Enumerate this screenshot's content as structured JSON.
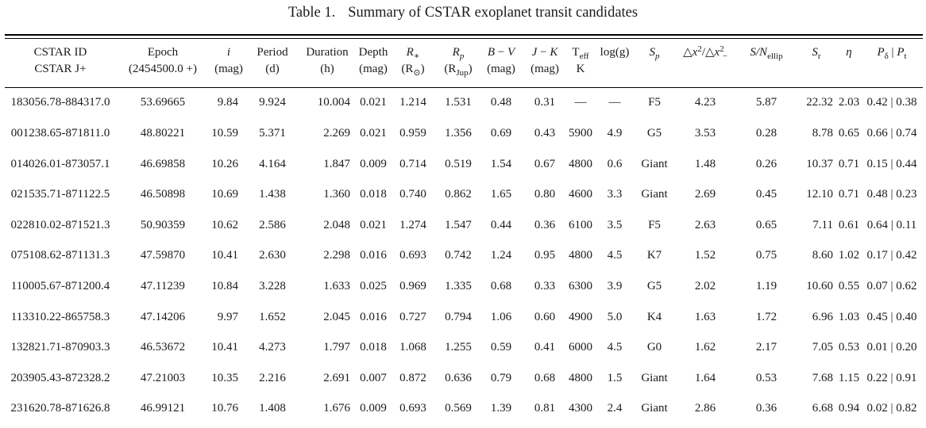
{
  "title": {
    "label": "Table 1.",
    "caption": "Summary of CSTAR exoplanet transit candidates"
  },
  "table": {
    "columns": [
      {
        "name": "cstar-id",
        "line1_html": "CSTAR ID",
        "line2_html": "CSTAR J+"
      },
      {
        "name": "epoch",
        "line1_html": "Epoch",
        "line2_html": "(2454500.0 +)"
      },
      {
        "name": "i-mag",
        "line1_html": "<i>i</i>",
        "line2_html": "(mag)"
      },
      {
        "name": "period",
        "line1_html": "Period",
        "line2_html": "(d)"
      },
      {
        "name": "duration",
        "line1_html": "Duration",
        "line2_html": "(h)"
      },
      {
        "name": "depth",
        "line1_html": "Depth",
        "line2_html": "(mag)"
      },
      {
        "name": "r-star",
        "line1_html": "<i>R</i><sub>∗</sub>",
        "line2_html": "(R<sub>⊙</sub>)"
      },
      {
        "name": "r-planet",
        "line1_html": "<i>R<sub>p</sub></i>",
        "line2_html": "(R<sub>Jup</sub>)"
      },
      {
        "name": "b-minus-v",
        "line1_html": "<i>B</i> − <i>V</i>",
        "line2_html": "(mag)"
      },
      {
        "name": "j-minus-k",
        "line1_html": "<i>J</i> − <i>K</i>",
        "line2_html": "(mag)"
      },
      {
        "name": "t-eff",
        "line1_html": "T<sub>eff</sub>",
        "line2_html": "K"
      },
      {
        "name": "log-g",
        "line1_html": "log(g)",
        "line2_html": ""
      },
      {
        "name": "spectral-type",
        "line1_html": "<i>S<sub>p</sub></i>",
        "line2_html": ""
      },
      {
        "name": "chi2-ratio",
        "line1_html": "△<i>x</i><sup>2</sup>/△<i>x</i><sup>2</sup><sub class='neg'>−</sub>",
        "line2_html": ""
      },
      {
        "name": "sn-ellip",
        "line1_html": "<i>S/N</i><sub>ellip</sub>",
        "line2_html": ""
      },
      {
        "name": "s-r",
        "line1_html": "<i>S</i><sub>r</sub>",
        "line2_html": ""
      },
      {
        "name": "eta",
        "line1_html": "<i>η</i>",
        "line2_html": ""
      },
      {
        "name": "p-delta-p-t",
        "line1_html": "<i>P</i><sub>δ</sub> | <i>P</i><sub>t</sub>",
        "line2_html": ""
      }
    ],
    "rows": [
      [
        "183056.78-884317.0",
        "53.69665",
        "9.84",
        "9.924",
        "10.004",
        "0.021",
        "1.214",
        "1.531",
        "0.48",
        "0.31",
        "—",
        "—",
        "F5",
        "4.23",
        "5.87",
        "22.32",
        "2.03",
        "0.42 | 0.38"
      ],
      [
        "001238.65-871811.0",
        "48.80221",
        "10.59",
        "5.371",
        "2.269",
        "0.021",
        "0.959",
        "1.356",
        "0.69",
        "0.43",
        "5900",
        "4.9",
        "G5",
        "3.53",
        "0.28",
        "8.78",
        "0.65",
        "0.66 | 0.74"
      ],
      [
        "014026.01-873057.1",
        "46.69858",
        "10.26",
        "4.164",
        "1.847",
        "0.009",
        "0.714",
        "0.519",
        "1.54",
        "0.67",
        "4800",
        "0.6",
        "Giant",
        "1.48",
        "0.26",
        "10.37",
        "0.71",
        "0.15 | 0.44"
      ],
      [
        "021535.71-871122.5",
        "46.50898",
        "10.69",
        "1.438",
        "1.360",
        "0.018",
        "0.740",
        "0.862",
        "1.65",
        "0.80",
        "4600",
        "3.3",
        "Giant",
        "2.69",
        "0.45",
        "12.10",
        "0.71",
        "0.48 | 0.23"
      ],
      [
        "022810.02-871521.3",
        "50.90359",
        "10.62",
        "2.586",
        "2.048",
        "0.021",
        "1.274",
        "1.547",
        "0.44",
        "0.36",
        "6100",
        "3.5",
        "F5",
        "2.63",
        "0.65",
        "7.11",
        "0.61",
        "0.64 | 0.11"
      ],
      [
        "075108.62-871131.3",
        "47.59870",
        "10.41",
        "2.630",
        "2.298",
        "0.016",
        "0.693",
        "0.742",
        "1.24",
        "0.95",
        "4800",
        "4.5",
        "K7",
        "1.52",
        "0.75",
        "8.60",
        "1.02",
        "0.17 | 0.42"
      ],
      [
        "110005.67-871200.4",
        "47.11239",
        "10.84",
        "3.228",
        "1.633",
        "0.025",
        "0.969",
        "1.335",
        "0.68",
        "0.33",
        "6300",
        "3.9",
        "G5",
        "2.02",
        "1.19",
        "10.60",
        "0.55",
        "0.07 | 0.62"
      ],
      [
        "113310.22-865758.3",
        "47.14206",
        "9.97",
        "1.652",
        "2.045",
        "0.016",
        "0.727",
        "0.794",
        "1.06",
        "0.60",
        "4900",
        "5.0",
        "K4",
        "1.63",
        "1.72",
        "6.96",
        "1.03",
        "0.45 | 0.40"
      ],
      [
        "132821.71-870903.3",
        "46.53672",
        "10.41",
        "4.273",
        "1.797",
        "0.018",
        "1.068",
        "1.255",
        "0.59",
        "0.41",
        "6000",
        "4.5",
        "G0",
        "1.62",
        "2.17",
        "7.05",
        "0.53",
        "0.01 | 0.20"
      ],
      [
        "203905.43-872328.2",
        "47.21003",
        "10.35",
        "2.216",
        "2.691",
        "0.007",
        "0.872",
        "0.636",
        "0.79",
        "0.68",
        "4800",
        "1.5",
        "Giant",
        "1.64",
        "0.53",
        "7.68",
        "1.15",
        "0.22 | 0.91"
      ],
      [
        "231620.78-871626.8",
        "46.99121",
        "10.76",
        "1.408",
        "1.676",
        "0.009",
        "0.693",
        "0.569",
        "1.39",
        "0.81",
        "4300",
        "2.4",
        "Giant",
        "2.86",
        "0.36",
        "6.68",
        "0.94",
        "0.02 | 0.82"
      ]
    ]
  },
  "colors": {
    "text": "#1b1b1b",
    "rule": "#000000",
    "background": "#ffffff"
  }
}
